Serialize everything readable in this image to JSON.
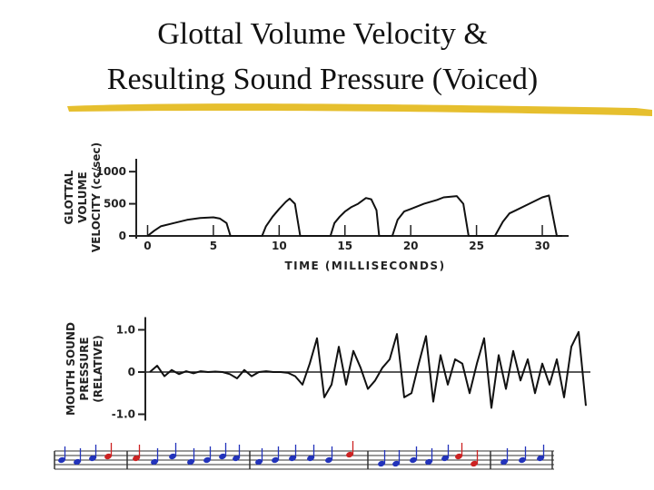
{
  "title": [
    "Glottal Volume Velocity &",
    "Resulting Sound Pressure (Voiced)"
  ],
  "chart_data": [
    {
      "type": "line",
      "ylabel": [
        "GLOTTAL",
        "VOLUME",
        "VELOCITY (cc/sec)"
      ],
      "xlabel": "TIME (MILLISECONDS)",
      "x": [
        0,
        0.5,
        1,
        2,
        3,
        4,
        5,
        5.5,
        6,
        6.3,
        7,
        8,
        8.7,
        9,
        9.5,
        10,
        10.5,
        10.8,
        11.2,
        11.6,
        12,
        13,
        13.9,
        14.2,
        14.6,
        15,
        15.5,
        16,
        16.6,
        17,
        17.4,
        17.6,
        18,
        18.6,
        19,
        19.5,
        20,
        21,
        22,
        22.5,
        23.5,
        24,
        24.4,
        25,
        26,
        26.4,
        27,
        27.5,
        28,
        29,
        30,
        30.5,
        31.1,
        31.5
      ],
      "values": [
        0,
        80,
        150,
        200,
        250,
        280,
        290,
        270,
        200,
        0,
        0,
        0,
        0,
        150,
        300,
        420,
        530,
        580,
        500,
        0,
        0,
        0,
        0,
        200,
        300,
        380,
        450,
        500,
        590,
        570,
        400,
        0,
        0,
        0,
        250,
        380,
        420,
        500,
        560,
        600,
        620,
        500,
        0,
        0,
        0,
        0,
        220,
        350,
        400,
        500,
        600,
        630,
        0,
        0
      ],
      "color": "#111111",
      "xlim": [
        -1,
        32
      ],
      "xticks": [
        0,
        5,
        10,
        15,
        20,
        25,
        30
      ],
      "ylim": [
        0,
        1200
      ],
      "yticks": [
        0,
        500,
        1000
      ]
    },
    {
      "type": "line",
      "ylabel": [
        "MOUTH SOUND",
        "PRESSURE",
        "(RELATIVE)"
      ],
      "values": [
        0,
        0.15,
        -0.1,
        0.05,
        -0.05,
        0.02,
        -0.03,
        0.02,
        0,
        0.01,
        0,
        -0.05,
        -0.15,
        0.05,
        -0.1,
        0,
        0.02,
        0,
        0,
        -0.02,
        -0.1,
        -0.3,
        0.2,
        0.8,
        -0.6,
        -0.3,
        0.6,
        -0.3,
        0.5,
        0.1,
        -0.4,
        -0.2,
        0.1,
        0.3,
        0.9,
        -0.6,
        -0.5,
        0.2,
        0.85,
        -0.7,
        0.4,
        -0.3,
        0.3,
        0.2,
        -0.5,
        0.2,
        0.8,
        -0.85,
        0.4,
        -0.4,
        0.5,
        -0.2,
        0.3,
        -0.5,
        0.2,
        -0.3,
        0.3,
        -0.6,
        0.6,
        0.95,
        -0.8
      ],
      "color": "#111111",
      "ylim": [
        -1.15,
        1.3
      ],
      "yticks": [
        {
          "value": -1,
          "label": "-1.0"
        },
        0,
        {
          "value": 1,
          "label": "1.0"
        }
      ]
    }
  ]
}
